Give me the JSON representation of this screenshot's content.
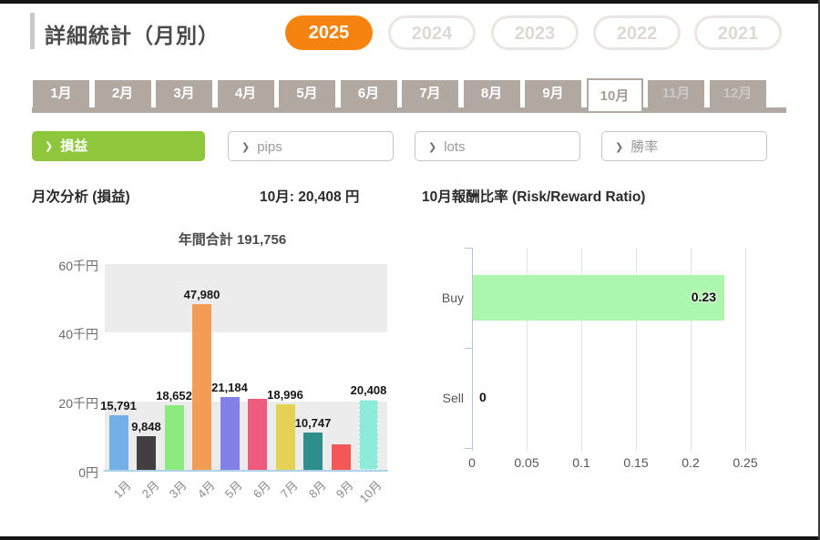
{
  "header": {
    "title": "詳細統計（月別）",
    "years": [
      {
        "label": "2025",
        "selected": true
      },
      {
        "label": "2024",
        "selected": false
      },
      {
        "label": "2023",
        "selected": false
      },
      {
        "label": "2022",
        "selected": false
      },
      {
        "label": "2021",
        "selected": false
      }
    ]
  },
  "month_tabs": [
    {
      "label": "1月"
    },
    {
      "label": "2月"
    },
    {
      "label": "3月"
    },
    {
      "label": "4月"
    },
    {
      "label": "5月"
    },
    {
      "label": "6月"
    },
    {
      "label": "7月"
    },
    {
      "label": "8月"
    },
    {
      "label": "9月"
    },
    {
      "label": "10月",
      "selected": true
    },
    {
      "label": "11月",
      "dimmed": true
    },
    {
      "label": "12月",
      "dimmed": true
    }
  ],
  "filter_buttons": [
    {
      "label": "損益",
      "selected": true
    },
    {
      "label": "pips",
      "selected": false
    },
    {
      "label": "lots",
      "selected": false
    },
    {
      "label": "勝率",
      "selected": false
    }
  ],
  "section_headers": {
    "left": "月次分析 (損益)",
    "selected_month_total": "10月: 20,408 円",
    "right": "10月報酬比率 (Risk/Reward Ratio)"
  },
  "colors": {
    "accent_orange": "#f6830f",
    "accent_green": "#8ec73c",
    "tab_taupe": "#b2a8a2",
    "buy_bar_green": "#adf6ad"
  },
  "chart_data": [
    {
      "type": "bar",
      "title": "年間合計 191,756",
      "categories": [
        "1月",
        "2月",
        "3月",
        "4月",
        "5月",
        "6月",
        "7月",
        "8月",
        "9月",
        "10月"
      ],
      "values": [
        15791,
        9848,
        18652,
        47980,
        21184,
        20700,
        18996,
        10747,
        7450,
        20408
      ],
      "value_labels": [
        "15,791",
        "9,848",
        "18,652",
        "47,980",
        "21,184",
        "",
        "18,996",
        "10,747",
        "",
        "20,408"
      ],
      "values_estimated_from_height": [
        false,
        false,
        false,
        false,
        false,
        true,
        false,
        false,
        true,
        false
      ],
      "bar_colors": [
        "#74b0e8",
        "#413f42",
        "#8cea7e",
        "#f49c55",
        "#8380e8",
        "#ef5a7f",
        "#e5d255",
        "#2d8e8b",
        "#f45757",
        "#8debd9"
      ],
      "y_ticks": [
        "60千円",
        "40千円",
        "20千円",
        "0円"
      ],
      "ylim": [
        0,
        60000
      ],
      "highlighted_index": 9,
      "plot_bands": "alternating gray/white horizontal bands"
    },
    {
      "type": "bar-horizontal",
      "categories": [
        "Buy",
        "Sell"
      ],
      "values": [
        0.23,
        0
      ],
      "value_labels": [
        "0.23",
        "0"
      ],
      "x_ticks": [
        "0",
        "0.05",
        "0.1",
        "0.15",
        "0.2",
        "0.25"
      ],
      "xlim": [
        0,
        0.27
      ],
      "bar_color": "#adf6ad",
      "grid": true
    }
  ]
}
